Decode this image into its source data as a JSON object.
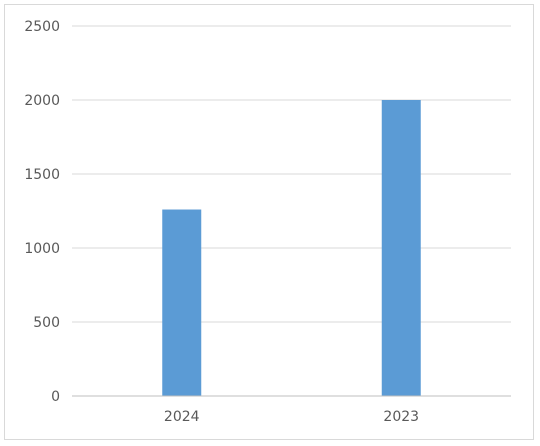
{
  "chart_data": {
    "type": "bar",
    "title": "",
    "xlabel": "",
    "ylabel": "",
    "categories": [
      "2024",
      "2023"
    ],
    "values": [
      1260,
      2000
    ],
    "ylim": [
      0,
      2500
    ],
    "yticks": [
      0,
      500,
      1000,
      1500,
      2000,
      2500
    ],
    "grid": true,
    "legend": "none",
    "bar_color": "#5b9bd5"
  }
}
